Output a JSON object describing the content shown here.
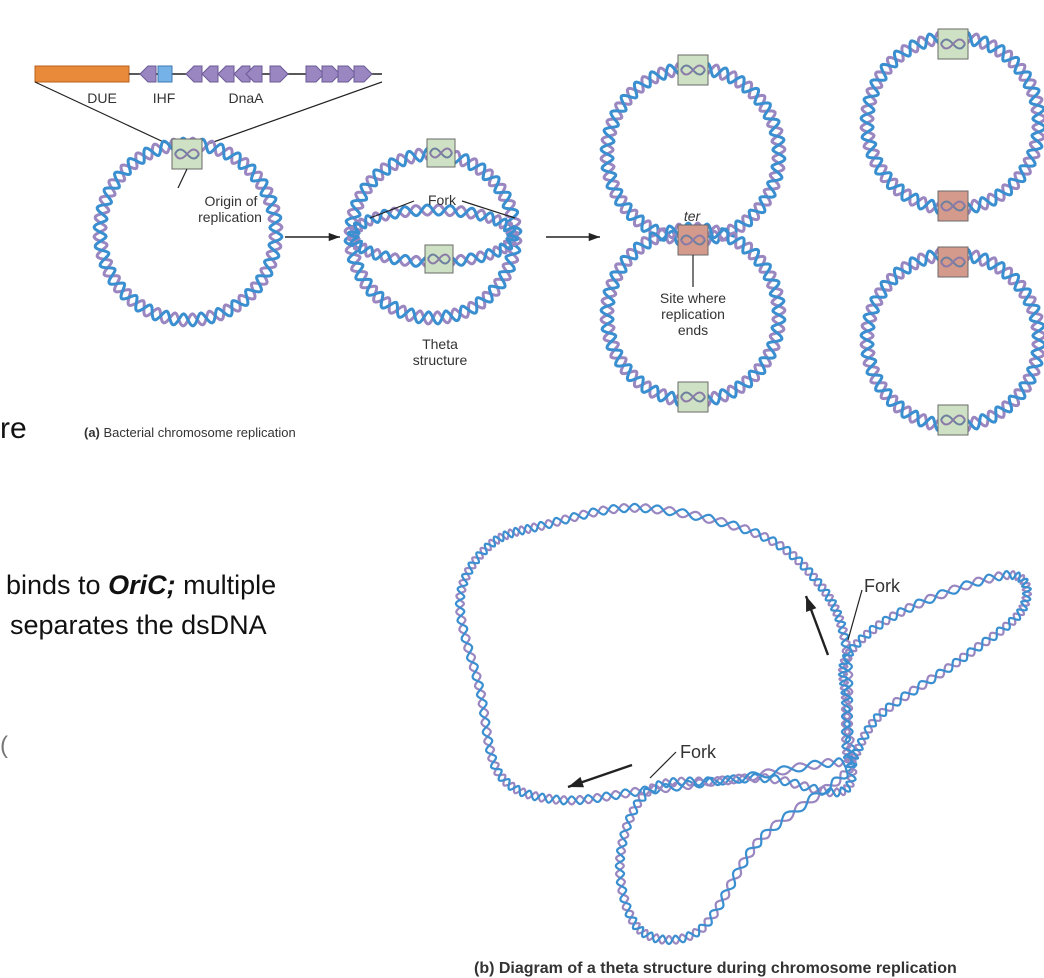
{
  "colors": {
    "strand_a": "#3a8fd0",
    "strand_b": "#9a86c0",
    "origin_box": "#cfe1c4",
    "ter_box": "#d49a8c",
    "due_bar": "#e98a3a",
    "ihf_box": "#74b2e8",
    "dnaa_arrow": "#9a86c0",
    "line": "#222222"
  },
  "gene_map": {
    "due_label": "DUE",
    "ihf_label": "IHF",
    "dnaa_label": "DnaA"
  },
  "panel_a": {
    "origin_label_1": "Origin of",
    "origin_label_2": "replication",
    "fork_label": "Fork",
    "theta_label_1": "Theta",
    "theta_label_2": "structure",
    "ter_label": "ter",
    "site_label_1": "Site where",
    "site_label_2": "replication",
    "site_label_3": "ends",
    "caption_bold": "(a)",
    "caption_text": " Bacterial chromosome replication"
  },
  "panel_b": {
    "fork_label_top": "Fork",
    "fork_label_bottom": "Fork",
    "caption_partial": "(b) Diagram of a theta structure during chromosome replication"
  },
  "slide_text": {
    "fragment_re": "re",
    "line1_prefix": "binds to ",
    "line1_em": "OriC;",
    "line1_suffix": " multiple",
    "line2": "separates the dsDNA",
    "fragment_edge": "("
  }
}
